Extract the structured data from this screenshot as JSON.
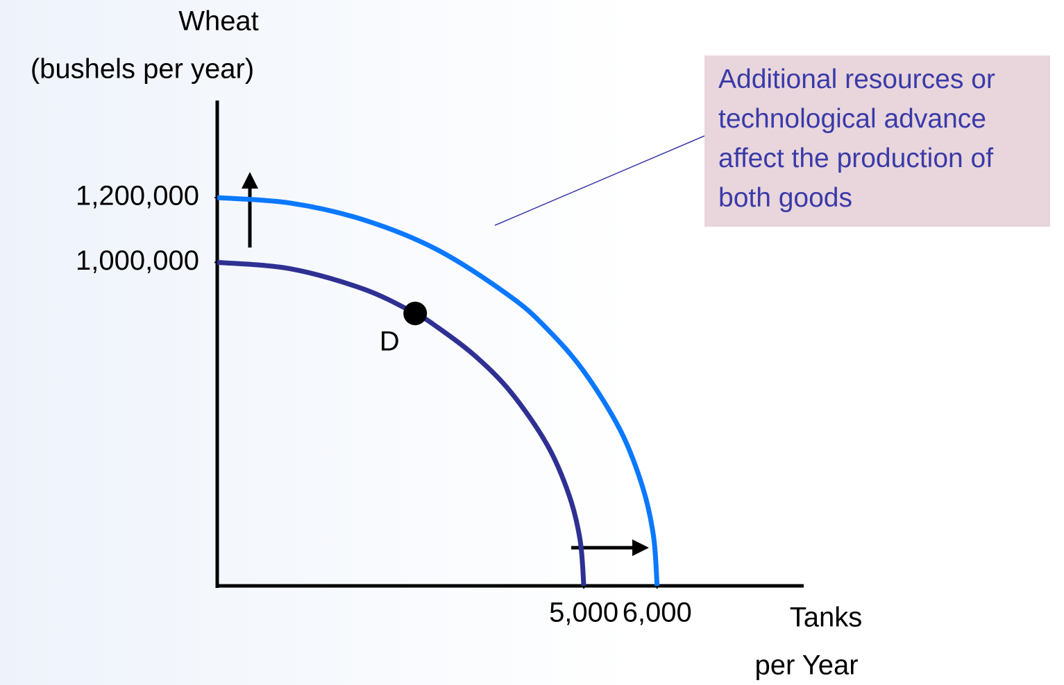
{
  "chart_data": {
    "type": "line",
    "x_label_lines": [
      "Tanks",
      "per Year"
    ],
    "y_label_lines": [
      "Wheat",
      "(bushels per year)"
    ],
    "xlim": [
      0,
      8000
    ],
    "ylim": [
      0,
      1500000
    ],
    "xticks": [
      {
        "value": 5000,
        "label": "5,000"
      },
      {
        "value": 6000,
        "label": "6,000"
      }
    ],
    "yticks": [
      {
        "value": 1000000,
        "label": "1,000,000"
      },
      {
        "value": 1200000,
        "label": "1,200,000"
      }
    ],
    "series": [
      {
        "color": "#2e3192",
        "x": [
          0,
          1000,
          2000,
          2700,
          3000,
          3500,
          4000,
          4500,
          4800,
          4950,
          5000
        ],
        "values": [
          1000000,
          980000,
          917000,
          842000,
          800000,
          714000,
          600000,
          436000,
          280000,
          141000,
          0
        ]
      },
      {
        "color": "#0a78ff",
        "x": [
          0,
          1000,
          2000,
          3000,
          4000,
          4500,
          5000,
          5500,
          5800,
          5950,
          6000
        ],
        "values": [
          1200000,
          1183000,
          1131000,
          1039000,
          894000,
          794000,
          663000,
          480000,
          307000,
          155000,
          0
        ]
      }
    ],
    "points": [
      {
        "label": "D",
        "x": 2700,
        "y": 842000
      }
    ],
    "annotation": "Additional resources or technological advance affect the production of both goods"
  }
}
